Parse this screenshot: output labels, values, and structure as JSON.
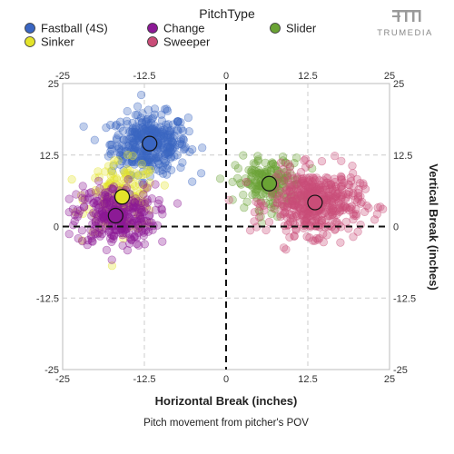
{
  "chart_data": {
    "type": "scatter",
    "legend_title": "PitchType",
    "legend_position": "top",
    "caption": "Pitch movement from pitcher's POV",
    "xlabel": "Horizontal Break (inches)",
    "ylabel": "Vertical Break (inches)",
    "xlim": [
      -25,
      25
    ],
    "ylim": [
      -25,
      25
    ],
    "ticks": [
      -25,
      -12.5,
      0,
      12.5,
      25
    ],
    "tick_labels": [
      "-25",
      "-12.5",
      "0",
      "12.5",
      "25"
    ],
    "grid": true,
    "series": [
      {
        "name": "Fastball (4S)",
        "color": "#3a66c2",
        "mean": [
          -11.7,
          14.5
        ],
        "spread": [
          2.9,
          2.6
        ],
        "n": 380
      },
      {
        "name": "Sinker",
        "color": "#e3e32a",
        "mean": [
          -15.9,
          5.2
        ],
        "spread": [
          2.7,
          3.0
        ],
        "n": 150
      },
      {
        "name": "Change",
        "color": "#8c1a96",
        "mean": [
          -16.9,
          1.9
        ],
        "spread": [
          3.0,
          2.7
        ],
        "n": 320
      },
      {
        "name": "Slider",
        "color": "#6aa334",
        "mean": [
          6.6,
          7.5
        ],
        "spread": [
          2.5,
          2.2
        ],
        "n": 180
      },
      {
        "name": "Sweeper",
        "color": "#c94d78",
        "mean": [
          13.6,
          4.2
        ],
        "spread": [
          3.5,
          2.8
        ],
        "n": 480
      }
    ]
  },
  "brand": {
    "name": "TRUMEDIA"
  }
}
